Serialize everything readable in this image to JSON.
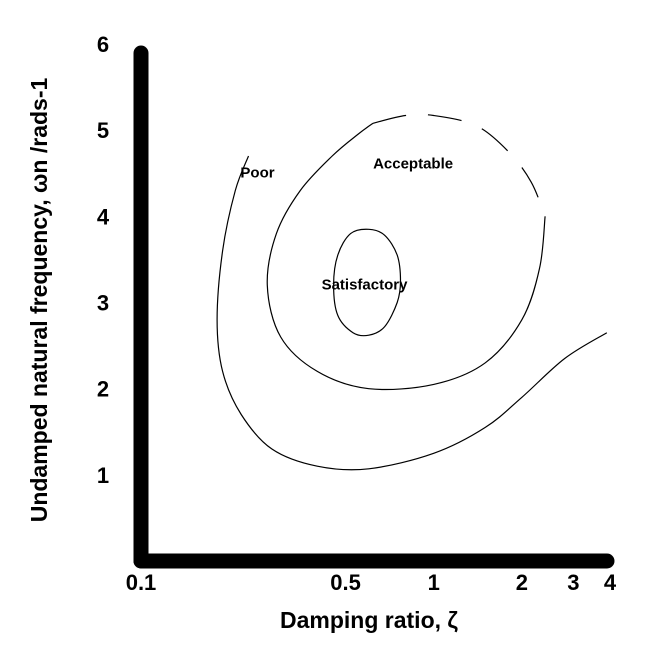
{
  "chart_data": {
    "type": "line",
    "title": "",
    "xlabel": "Damping ratio, ζ",
    "ylabel": "Undamped natural frequency, ωn /rads-1",
    "x_scale": "log",
    "xlim": [
      0.1,
      4
    ],
    "ylim": [
      0,
      6
    ],
    "x_ticks": [
      {
        "value": 0.1,
        "label": "0.1"
      },
      {
        "value": 0.5,
        "label": "0.5"
      },
      {
        "value": 1,
        "label": "1"
      },
      {
        "value": 2,
        "label": "2"
      },
      {
        "value": 3,
        "label": "3"
      },
      {
        "value": 4,
        "label": "4"
      }
    ],
    "y_ticks": [
      {
        "value": 1,
        "label": "1"
      },
      {
        "value": 2,
        "label": "2"
      },
      {
        "value": 3,
        "label": "3"
      },
      {
        "value": 4,
        "label": "4"
      },
      {
        "value": 5,
        "label": "5"
      },
      {
        "value": 6,
        "label": "6"
      }
    ],
    "grid": false,
    "regions": [
      {
        "label": "Satisfactory",
        "label_at": {
          "x": 0.58,
          "y": 3.2
        },
        "boundary": "closed",
        "points": [
          [
            0.6,
            3.85
          ],
          [
            0.52,
            3.8
          ],
          [
            0.47,
            3.55
          ],
          [
            0.455,
            3.2
          ],
          [
            0.47,
            2.85
          ],
          [
            0.53,
            2.65
          ],
          [
            0.6,
            2.62
          ],
          [
            0.68,
            2.72
          ],
          [
            0.75,
            3.0
          ],
          [
            0.77,
            3.25
          ],
          [
            0.75,
            3.55
          ],
          [
            0.68,
            3.78
          ]
        ]
      },
      {
        "label": "Acceptable",
        "label_at": {
          "x": 0.85,
          "y": 4.6
        },
        "boundary": "closed",
        "solid_points": [
          [
            2.4,
            4.0
          ],
          [
            2.3,
            3.4
          ],
          [
            2.0,
            2.8
          ],
          [
            1.5,
            2.3
          ],
          [
            1.0,
            2.05
          ],
          [
            0.6,
            2.0
          ],
          [
            0.4,
            2.2
          ],
          [
            0.3,
            2.6
          ],
          [
            0.27,
            3.2
          ],
          [
            0.29,
            3.8
          ],
          [
            0.35,
            4.3
          ],
          [
            0.45,
            4.7
          ],
          [
            0.55,
            4.95
          ],
          [
            0.62,
            5.08
          ]
        ],
        "dashed_points": [
          [
            0.62,
            5.08
          ],
          [
            0.8,
            5.17
          ],
          [
            1.0,
            5.17
          ],
          [
            1.4,
            5.05
          ],
          [
            1.8,
            4.75
          ],
          [
            2.15,
            4.4
          ],
          [
            2.4,
            4.0
          ]
        ]
      },
      {
        "label": "Poor",
        "label_at": {
          "x": 0.25,
          "y": 4.5
        },
        "boundary": "open",
        "points": [
          [
            0.233,
            4.7
          ],
          [
            0.21,
            4.3
          ],
          [
            0.19,
            3.6
          ],
          [
            0.182,
            2.8
          ],
          [
            0.19,
            2.2
          ],
          [
            0.22,
            1.7
          ],
          [
            0.28,
            1.3
          ],
          [
            0.4,
            1.1
          ],
          [
            0.6,
            1.07
          ],
          [
            1.0,
            1.25
          ],
          [
            1.5,
            1.55
          ],
          [
            2.0,
            1.9
          ],
          [
            2.8,
            2.35
          ],
          [
            3.9,
            2.65
          ]
        ]
      }
    ],
    "colors": {
      "axis": "#000000",
      "contour": "#000000",
      "background": "#ffffff"
    }
  }
}
